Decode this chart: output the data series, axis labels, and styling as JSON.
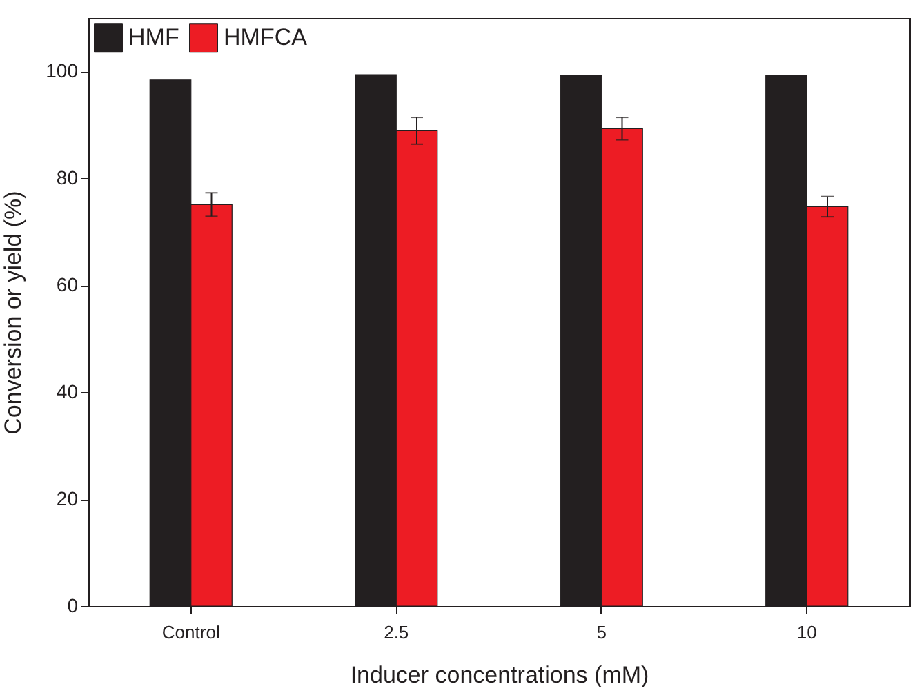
{
  "chart_data": {
    "type": "bar",
    "xlabel": "Inducer concentrations (mM)",
    "ylabel": "Conversion or yield (%)",
    "categories": [
      "Control",
      "2.5",
      "5",
      "10"
    ],
    "series": [
      {
        "name": "HMF",
        "color": "#231f20",
        "values": [
          98.4,
          99.4,
          99.2,
          99.2
        ]
      },
      {
        "name": "HMFCA",
        "color": "#ed1c24",
        "values": [
          75.1,
          88.9,
          89.3,
          74.7
        ],
        "errors": [
          2.2,
          2.5,
          2.1,
          1.9
        ]
      }
    ],
    "ylim": [
      0,
      110
    ],
    "yticks": [
      0,
      20,
      40,
      60,
      80,
      100
    ],
    "grid": false,
    "legend": "top left"
  }
}
